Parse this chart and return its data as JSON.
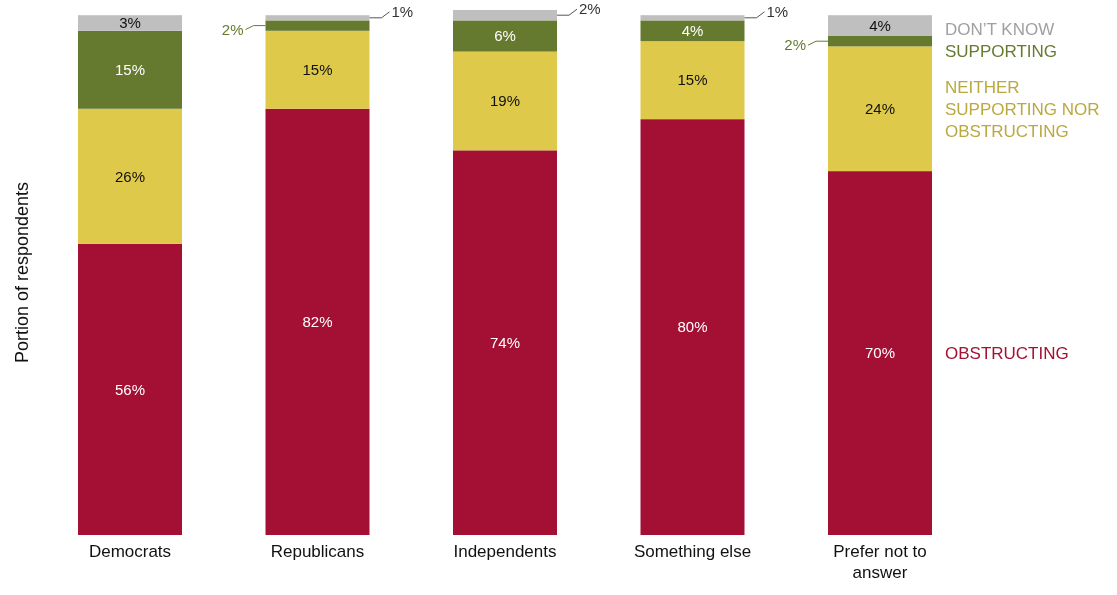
{
  "chart_data": {
    "type": "bar",
    "stacked": true,
    "ylabel": "Portion of respondents",
    "categories": [
      "Democrats",
      "Republicans",
      "Independents",
      "Something else",
      "Prefer not to answer"
    ],
    "series": [
      {
        "name": "OBSTRUCTING",
        "color": "#a31034",
        "values": [
          56,
          82,
          74,
          80,
          70
        ],
        "value_labels": [
          "56%",
          "82%",
          "74%",
          "80%",
          "70%"
        ]
      },
      {
        "name": "NEITHER SUPPORTING NOR OBSTRUCTING",
        "color": "#dfc94b",
        "values": [
          26,
          15,
          19,
          15,
          24
        ],
        "value_labels": [
          "26%",
          "15%",
          "19%",
          "15%",
          "24%"
        ]
      },
      {
        "name": "SUPPORTING",
        "color": "#667a2f",
        "values": [
          15,
          2,
          6,
          4,
          2
        ],
        "value_labels": [
          "15%",
          "2%",
          "6%",
          "4%",
          "2%"
        ]
      },
      {
        "name": "DON’T KNOW",
        "color": "#bfbfbf",
        "values": [
          3,
          1,
          2,
          1,
          4
        ],
        "value_labels": [
          "3%",
          "1%",
          "2%",
          "1%",
          "4%"
        ]
      }
    ],
    "ylim": [
      0,
      101
    ],
    "tick_labels": "x",
    "legend": "right"
  }
}
